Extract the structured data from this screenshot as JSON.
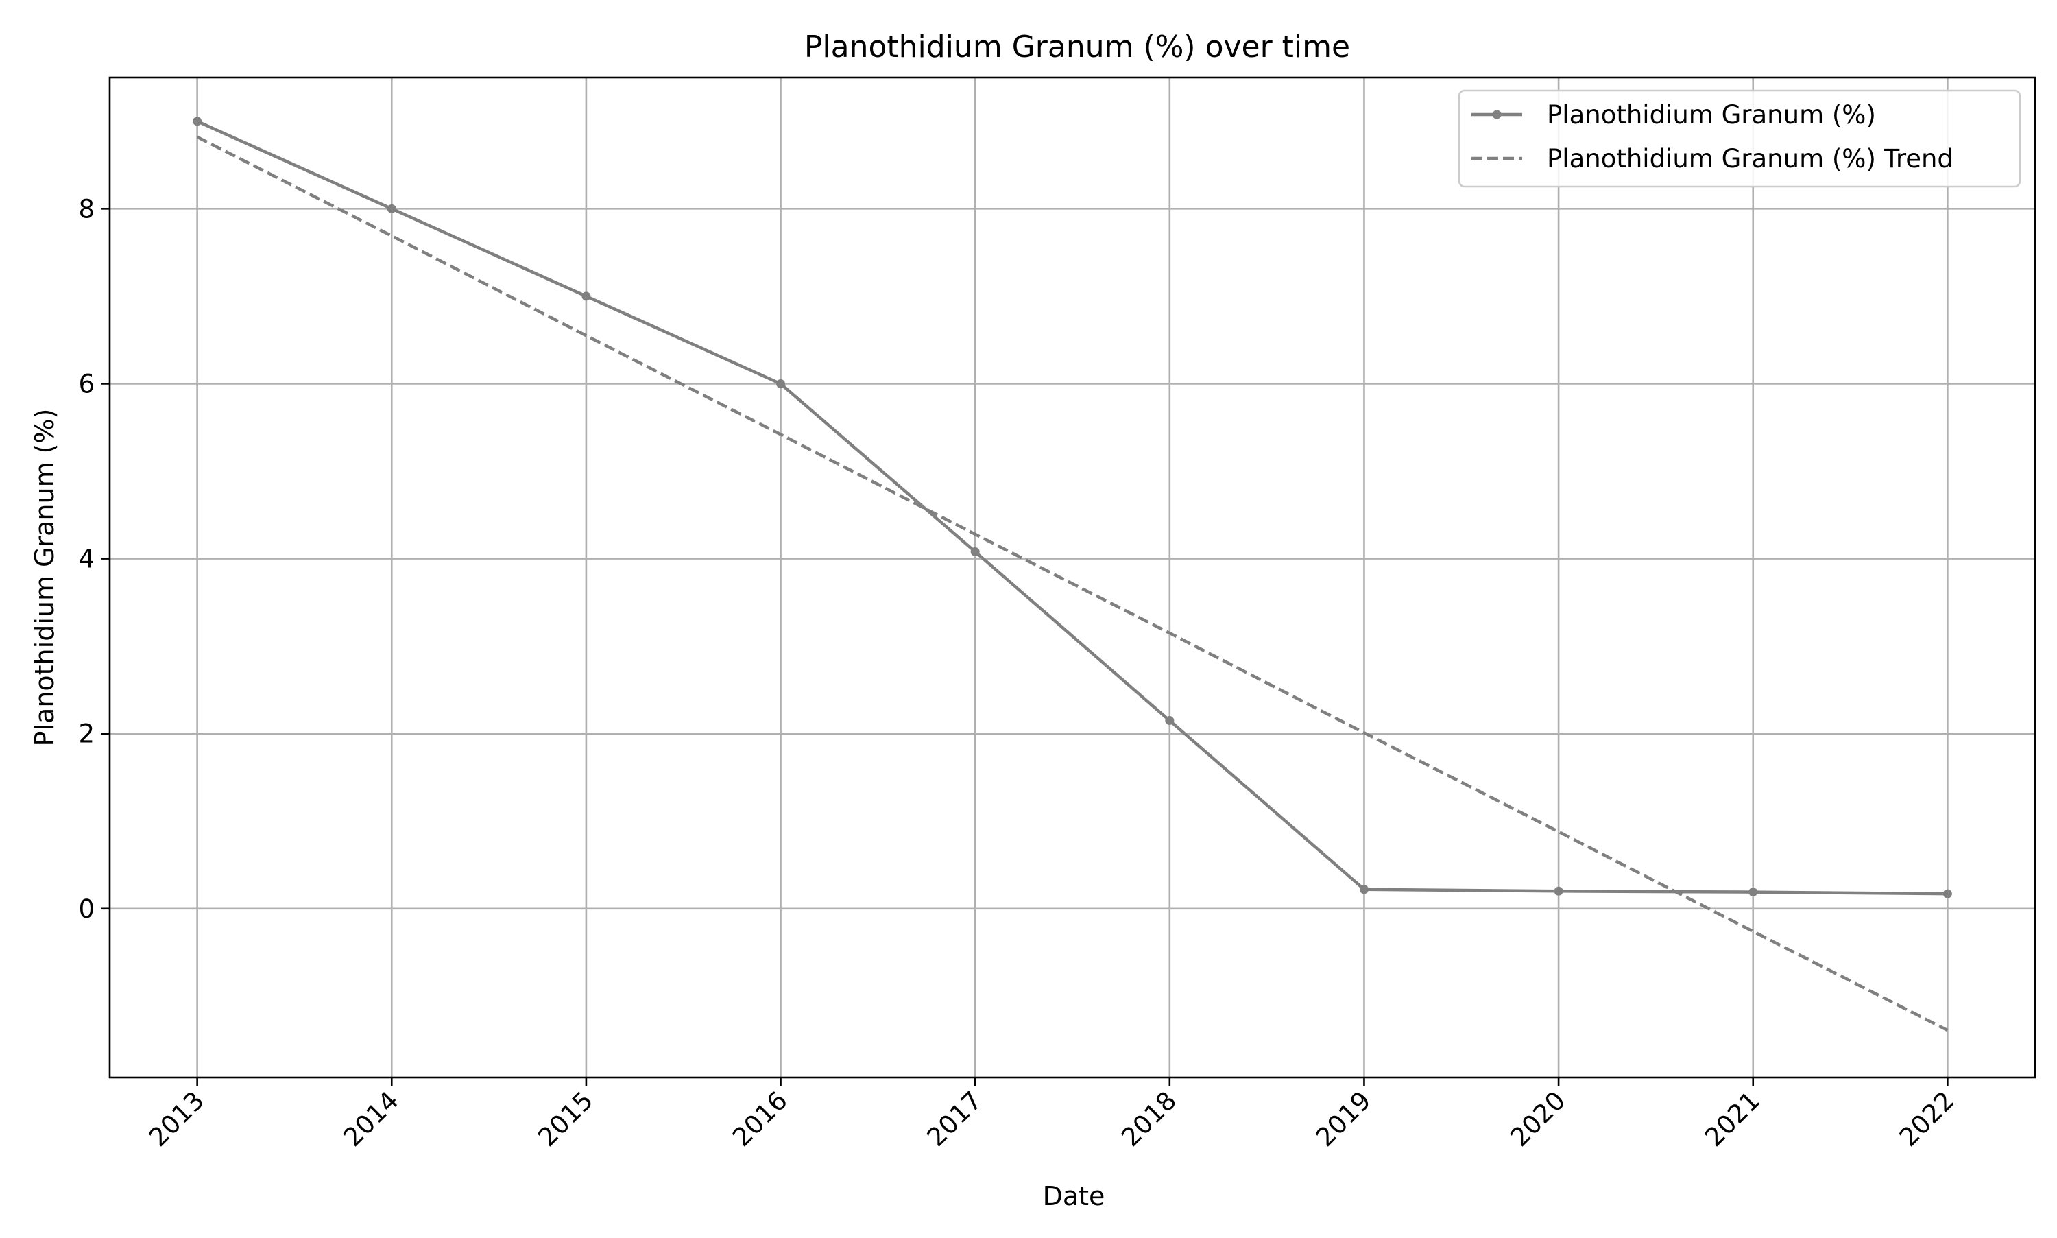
{
  "chart_data": {
    "type": "line",
    "title": "Planothidium Granum (%) over time",
    "xlabel": "Date",
    "ylabel": "Planothidium Granum (%)",
    "x": [
      "2013",
      "2014",
      "2015",
      "2016",
      "2017",
      "2018",
      "2019",
      "2020",
      "2021",
      "2022"
    ],
    "xlim": [
      2012.55,
      2022.45
    ],
    "ylim": [
      -1.93,
      9.5
    ],
    "yticks": [
      0,
      2,
      4,
      6,
      8
    ],
    "grid": true,
    "legend_position": "top-right",
    "series": [
      {
        "name": "Planothidium Granum (%)",
        "style": "solid-with-markers",
        "color": "#808080",
        "values": [
          9.0,
          8.0,
          7.0,
          6.0,
          4.08,
          2.15,
          0.22,
          0.2,
          0.19,
          0.17
        ]
      },
      {
        "name": "Planothidium Granum (%) Trend",
        "style": "dashed",
        "color": "#808080",
        "values": [
          8.82,
          7.69,
          6.55,
          5.42,
          4.28,
          3.15,
          2.01,
          0.88,
          -0.26,
          -1.39
        ]
      }
    ]
  }
}
